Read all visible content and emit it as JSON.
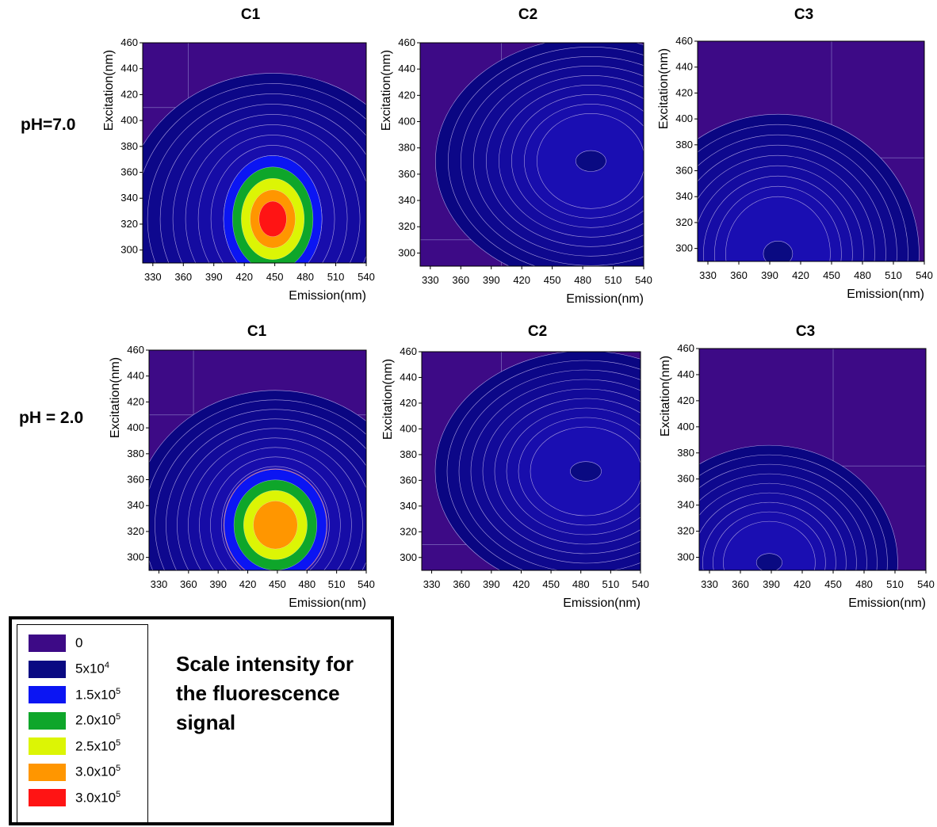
{
  "chart_data": {
    "type": "heatmap",
    "rows": [
      {
        "label": "pH=7.0",
        "panels": [
          {
            "title": "C1",
            "type": "heatmap",
            "xlabel": "Emission(nm)",
            "ylabel": "Excitation(nm)",
            "xticks": [
              "330",
              "360",
              "390",
              "420",
              "450",
              "480",
              "510",
              "540"
            ],
            "yticks": [
              "300",
              "320",
              "340",
              "360",
              "380",
              "400",
              "420",
              "440",
              "460"
            ],
            "xlim": [
              320,
              540
            ],
            "ylim": [
              290,
              460
            ],
            "peaks": [
              {
                "emission": 448,
                "excitation": 324,
                "intensity": 300000
              }
            ]
          },
          {
            "title": "C2",
            "type": "heatmap",
            "xlabel": "Emission(nm)",
            "ylabel": "Excitation(nm)",
            "xticks": [
              "330",
              "360",
              "390",
              "420",
              "450",
              "480",
              "510",
              "540"
            ],
            "yticks": [
              "300",
              "320",
              "340",
              "360",
              "380",
              "400",
              "420",
              "440",
              "460"
            ],
            "xlim": [
              320,
              540
            ],
            "ylim": [
              290,
              460
            ],
            "peaks": [
              {
                "emission": 488,
                "excitation": 370,
                "intensity": 100000
              }
            ]
          },
          {
            "title": "C3",
            "type": "heatmap",
            "xlabel": "Emission(nm)",
            "ylabel": "Excitation(nm)",
            "xticks": [
              "330",
              "360",
              "390",
              "420",
              "450",
              "480",
              "510",
              "540"
            ],
            "yticks": [
              "300",
              "320",
              "340",
              "360",
              "380",
              "400",
              "420",
              "440",
              "460"
            ],
            "xlim": [
              320,
              540
            ],
            "ylim": [
              290,
              460
            ],
            "peaks": [
              {
                "emission": 398,
                "excitation": 296,
                "intensity": 60000
              }
            ]
          }
        ]
      },
      {
        "label": "pH = 2.0",
        "panels": [
          {
            "title": "C1",
            "type": "heatmap",
            "xlabel": "Emission(nm)",
            "ylabel": "Excitation(nm)",
            "xticks": [
              "330",
              "360",
              "390",
              "420",
              "450",
              "480",
              "510",
              "540"
            ],
            "yticks": [
              "300",
              "320",
              "340",
              "360",
              "380",
              "400",
              "420",
              "440",
              "460"
            ],
            "xlim": [
              320,
              540
            ],
            "ylim": [
              290,
              460
            ],
            "peaks": [
              {
                "emission": 448,
                "excitation": 325,
                "intensity": 250000
              }
            ]
          },
          {
            "title": "C2",
            "type": "heatmap",
            "xlabel": "Emission(nm)",
            "ylabel": "Excitation(nm)",
            "xticks": [
              "330",
              "360",
              "390",
              "420",
              "450",
              "480",
              "510",
              "540"
            ],
            "yticks": [
              "300",
              "320",
              "340",
              "360",
              "380",
              "400",
              "420",
              "440",
              "460"
            ],
            "xlim": [
              320,
              540
            ],
            "ylim": [
              290,
              460
            ],
            "peaks": [
              {
                "emission": 485,
                "excitation": 367,
                "intensity": 80000
              }
            ]
          },
          {
            "title": "C3",
            "type": "heatmap",
            "xlabel": "Emission(nm)",
            "ylabel": "Excitation(nm)",
            "xticks": [
              "330",
              "360",
              "390",
              "420",
              "450",
              "480",
              "510",
              "540"
            ],
            "yticks": [
              "300",
              "320",
              "340",
              "360",
              "380",
              "400",
              "420",
              "440",
              "460"
            ],
            "xlim": [
              320,
              540
            ],
            "ylim": [
              290,
              460
            ],
            "peaks": [
              {
                "emission": 388,
                "excitation": 296,
                "intensity": 50000
              }
            ]
          }
        ]
      }
    ],
    "color_scale": [
      {
        "base": "0",
        "exp": "",
        "color": "#3d0a86"
      },
      {
        "base": "5x10",
        "exp": "4",
        "color": "#0a0a82"
      },
      {
        "base": "1.5x10",
        "exp": "5",
        "color": "#0b15f3"
      },
      {
        "base": "2.0x10",
        "exp": "5",
        "color": "#0ea62a"
      },
      {
        "base": "2.5x10",
        "exp": "5",
        "color": "#dcf505"
      },
      {
        "base": "3.0x10",
        "exp": "5",
        "color": "#ff9600"
      },
      {
        "base": "3.0x10",
        "exp": "5",
        "color": "#ff1414"
      }
    ],
    "legend_title": "Scale intensity for the fluorescence signal"
  }
}
